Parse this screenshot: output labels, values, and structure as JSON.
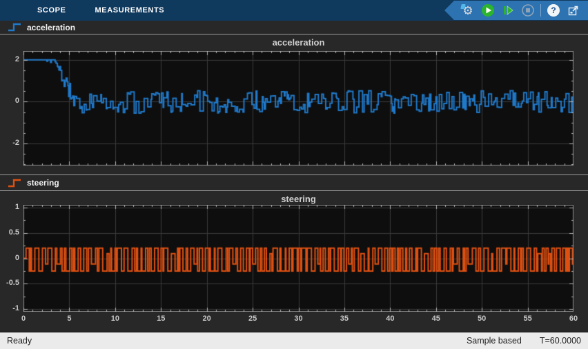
{
  "window": {
    "title": "Scope"
  },
  "ribbon": {
    "tabs": [
      {
        "label": "SCOPE"
      },
      {
        "label": "MEASUREMENTS"
      }
    ],
    "toolbar": {
      "buttons": [
        {
          "name": "simulation-settings",
          "enabled": true
        },
        {
          "name": "run",
          "enabled": true
        },
        {
          "name": "step-forward",
          "enabled": true
        },
        {
          "name": "stop",
          "enabled": false
        },
        {
          "name": "help",
          "enabled": true
        },
        {
          "name": "pop-out",
          "enabled": true
        }
      ],
      "help_glyph": "?"
    }
  },
  "legends": [
    {
      "label": "acceleration",
      "color": "#1F78C8",
      "icon": "step-signal-icon"
    },
    {
      "label": "steering",
      "color": "#DE5012",
      "icon": "step-signal-icon"
    }
  ],
  "colors": {
    "ribbon_bg": "#10395E",
    "toolbar_bg": "#2D73B2",
    "panel_bg": "#282828",
    "plot_bg": "#0E0E0E",
    "grid": "#3A3A3A",
    "plot_border": "#8C8C8C",
    "tick_mark": "#B8B8B8",
    "tick_label": "#C8C8C8",
    "run_green": "#2CB52C",
    "status_bg": "#EBEBEB",
    "signal_blue": "#1F78C8",
    "signal_orange": "#DE5012"
  },
  "status_bar": {
    "left": "Ready",
    "sample_mode": "Sample based",
    "time": "T=60.0000"
  },
  "chart_data": [
    {
      "type": "line",
      "title": "acceleration",
      "line_color": "#1F78C8",
      "legend": "acceleration",
      "x": {
        "min": 0,
        "max": 60,
        "major_step": 5,
        "minor_step": 1,
        "show_labels": false
      },
      "y": {
        "min": -3.05,
        "max": 2.42,
        "major_ticks": [
          2,
          0,
          -2
        ],
        "minor_step": 0.5,
        "tick_labels": [
          "2",
          "0",
          "-2"
        ]
      },
      "grid": true,
      "signal": {
        "kind": "decay_then_random_square",
        "description": "Holds at 2 from t=0 to ~3.3s with two brief small dips, decays in noisy steps from 2 to ~0 between t=3.35 and t=5.6, then random square-wave noise between about -0.55 and +0.55 until t=60.",
        "seed": 11,
        "t_end": 60,
        "initial_level": 2,
        "dips": [
          [
            2.55,
            1.93,
            0.1
          ],
          [
            2.95,
            1.88,
            0.1
          ]
        ],
        "decay_start": 3.35,
        "decay_end": 5.6,
        "steady_high": [
          0.12,
          0.55
        ],
        "steady_low": [
          -0.55,
          -0.12
        ],
        "steady_mid": [
          -0.12,
          0.12
        ],
        "hold_range": [
          0.07,
          0.4
        ]
      }
    },
    {
      "type": "line",
      "title": "steering",
      "line_color": "#DE5012",
      "legend": "steering",
      "x": {
        "min": 0,
        "max": 60,
        "major_step": 5,
        "minor_step": 1,
        "show_labels": true,
        "tick_labels": [
          "0",
          "5",
          "10",
          "15",
          "20",
          "25",
          "30",
          "35",
          "40",
          "45",
          "50",
          "55",
          "60"
        ]
      },
      "y": {
        "min": -1.05,
        "max": 1.05,
        "major_ticks": [
          1,
          0.5,
          0,
          -0.5,
          -1
        ],
        "minor_step": 0.25,
        "tick_labels": [
          "1",
          "0.5",
          "0",
          "-0.5",
          "-1"
        ]
      },
      "grid": true,
      "signal": {
        "kind": "random_square_two_level",
        "description": "Random square wave toggling between about +0.2 and -0.25 for the whole run (0 to 60 s), starting from 0.",
        "seed": 5,
        "t_end": 60,
        "start_level": 0,
        "start_hold": 0.28,
        "high_level": 0.2,
        "low_level": -0.25,
        "hold_range": [
          0.06,
          0.48
        ]
      }
    }
  ]
}
